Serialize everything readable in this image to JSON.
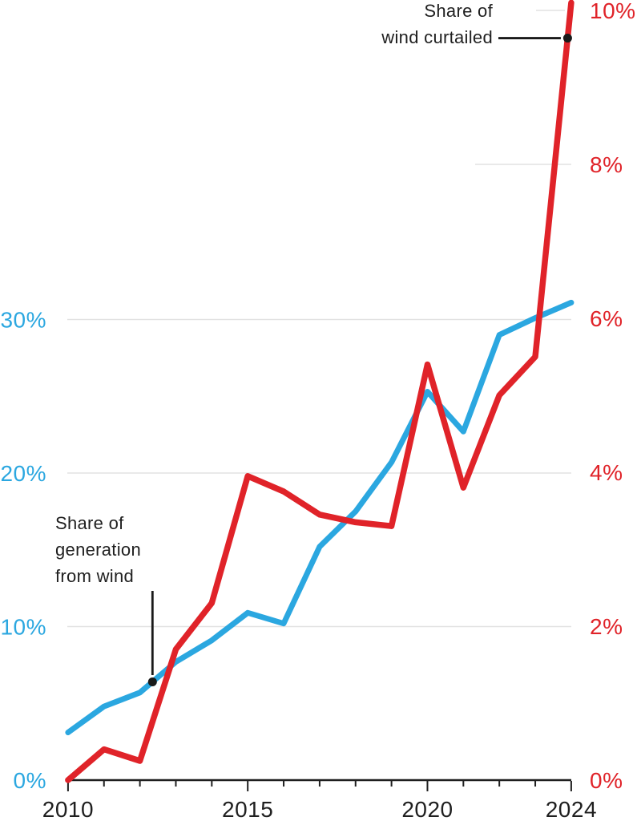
{
  "chart_data": {
    "type": "line",
    "title": "",
    "x": [
      2010,
      2011,
      2012,
      2013,
      2014,
      2015,
      2016,
      2017,
      2018,
      2019,
      2020,
      2021,
      2022,
      2023,
      2024
    ],
    "series": [
      {
        "name": "Share of generation from wind",
        "axis": "left",
        "color": "#2ba7e0",
        "values": [
          3.1,
          4.8,
          5.7,
          7.7,
          9.1,
          10.9,
          10.2,
          15.2,
          17.5,
          20.7,
          25.3,
          22.7,
          29.0,
          30.1,
          31.1
        ]
      },
      {
        "name": "Share of wind curtailed",
        "axis": "right",
        "color": "#e02329",
        "values": [
          0,
          0.4,
          0.25,
          1.7,
          2.3,
          3.95,
          3.75,
          3.45,
          3.35,
          3.3,
          5.4,
          3.8,
          5.0,
          5.5,
          10.1
        ]
      }
    ],
    "left_axis": {
      "color": "#2ba7e0",
      "ticks": [
        0,
        10,
        20,
        30
      ],
      "labels": [
        "0%",
        "10%",
        "20%",
        "30%"
      ],
      "range": [
        0,
        31.5
      ]
    },
    "right_axis": {
      "color": "#e02329",
      "ticks": [
        0,
        2,
        4,
        6,
        8,
        10
      ],
      "labels": [
        "0%",
        "2%",
        "4%",
        "6%",
        "8%",
        "10%"
      ],
      "range": [
        0,
        10.1
      ]
    },
    "x_axis": {
      "tick_years": [
        2010,
        2011,
        2012,
        2013,
        2014,
        2015,
        2016,
        2017,
        2018,
        2019,
        2020,
        2021,
        2022,
        2023,
        2024
      ],
      "labeled_years": [
        "2010",
        "2015",
        "2020",
        "2024"
      ]
    },
    "grid": true,
    "legend_position": "inline-annotations"
  },
  "annotations": {
    "generation": {
      "lines": [
        "Share of",
        "generation",
        "from wind"
      ],
      "series": 0,
      "anchor_year": 2012.35
    },
    "curtailed": {
      "lines": [
        "Share of",
        "wind curtailed"
      ],
      "series": 1,
      "anchor_year": 2023.9
    }
  },
  "colors": {
    "generation_line": "#2ba7e0",
    "curtailed_line": "#e02329",
    "annotation_ink": "#1a1a1a",
    "gridline": "#e2e2e2",
    "axis_ink": "#1f1f1f",
    "background": "#ffffff"
  }
}
